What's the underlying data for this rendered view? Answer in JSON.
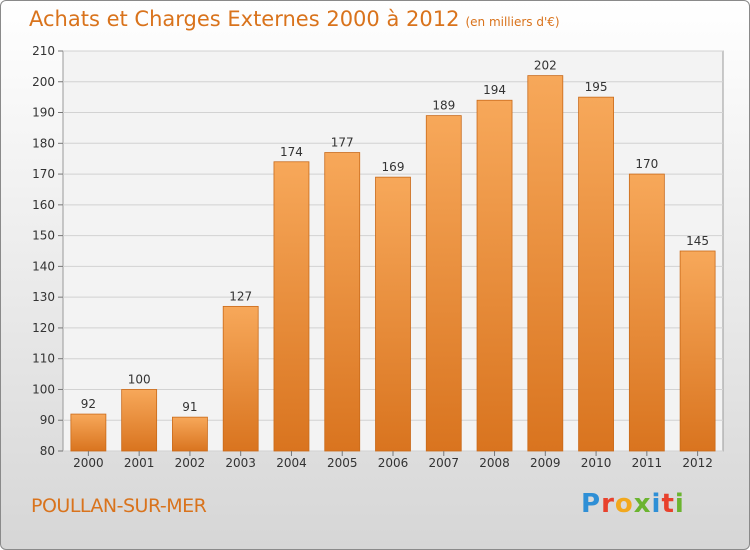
{
  "header": {
    "title": "Achats et Charges Externes 2000 à 2012",
    "unit": "(en milliers d'€)"
  },
  "footer": {
    "commune": "POULLAN-SUR-MER"
  },
  "logo": {
    "letters": [
      "P",
      "r",
      "o",
      "x",
      "i",
      "t",
      "i"
    ],
    "colors": [
      "#2e8fd6",
      "#e8412c",
      "#f2a81d",
      "#6bb42f",
      "#2e8fd6",
      "#e8412c",
      "#6bb42f"
    ]
  },
  "chart_data": {
    "type": "bar",
    "title": "Achats et Charges Externes 2000 à 2012",
    "xlabel": "",
    "ylabel": "",
    "categories": [
      "2000",
      "2001",
      "2002",
      "2003",
      "2004",
      "2005",
      "2006",
      "2007",
      "2008",
      "2009",
      "2010",
      "2011",
      "2012"
    ],
    "values": [
      92,
      100,
      91,
      127,
      174,
      177,
      169,
      189,
      194,
      202,
      195,
      170,
      145
    ],
    "ylim": [
      80,
      210
    ],
    "yticks": [
      80,
      90,
      100,
      110,
      120,
      130,
      140,
      150,
      160,
      170,
      180,
      190,
      200,
      210
    ],
    "grid": true,
    "bar_color_top": "#f7a85a",
    "bar_color_bottom": "#d9741f"
  }
}
